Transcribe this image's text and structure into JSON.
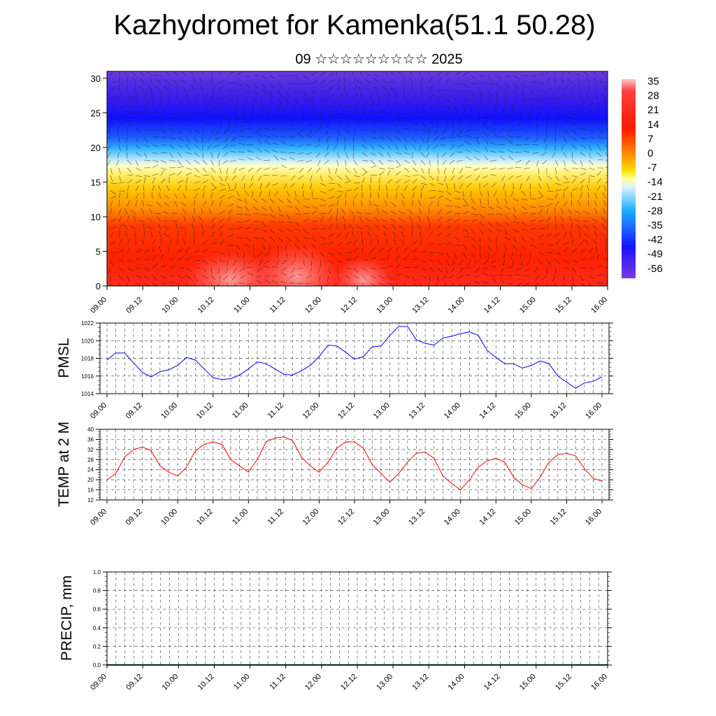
{
  "header": {
    "title": "Kazhydromet for Kamenka(51.1 50.28)",
    "subtitle": "09 ☆☆☆☆☆☆☆☆☆ 2025"
  },
  "time_ticks": [
    "09.00",
    "09.12",
    "10.00",
    "10.12",
    "11.00",
    "11.12",
    "12.00",
    "12.12",
    "13.00",
    "13.12",
    "14.00",
    "14.12",
    "15.00",
    "15.12",
    "16.00"
  ],
  "chart_data": [
    {
      "type": "heatmap",
      "panel": "cross-section",
      "xlabel": "",
      "ylabel": "",
      "ylim": [
        0,
        31
      ],
      "y_ticks": [
        0,
        5,
        10,
        15,
        20,
        25,
        30
      ],
      "colorbar_labels": [
        35,
        28,
        21,
        14,
        7,
        0,
        -7,
        -14,
        -21,
        -28,
        -35,
        -42,
        -49,
        -56
      ],
      "colorbar_range": [
        -63,
        42
      ],
      "overlay": "wind vectors"
    },
    {
      "type": "line",
      "panel": "pmsl",
      "ylabel": "PMSL",
      "ylim": [
        1014,
        1022
      ],
      "y_ticks": [
        1014,
        1016,
        1018,
        1020,
        1022
      ],
      "grid": true,
      "color": "#0000ff",
      "values": [
        1017.8,
        1018.6,
        1018.6,
        1017.5,
        1016.4,
        1015.9,
        1016.5,
        1016.7,
        1017.2,
        1018.1,
        1017.8,
        1016.8,
        1015.8,
        1015.6,
        1015.7,
        1016.1,
        1016.8,
        1017.6,
        1017.4,
        1016.8,
        1016.2,
        1016.1,
        1016.6,
        1017.2,
        1018.2,
        1019.5,
        1019.4,
        1018.7,
        1017.9,
        1018.2,
        1019.3,
        1019.4,
        1020.6,
        1021.6,
        1021.6,
        1020.1,
        1019.7,
        1019.5,
        1020.3,
        1020.5,
        1020.8,
        1021.0,
        1020.6,
        1018.9,
        1018.1,
        1017.4,
        1017.4,
        1016.9,
        1017.2,
        1017.7,
        1017.4,
        1016.0,
        1015.3,
        1014.6,
        1015.2,
        1015.4,
        1015.9
      ]
    },
    {
      "type": "line",
      "panel": "temp",
      "ylabel": "TEMP at 2 M",
      "ylim": [
        12,
        40
      ],
      "y_ticks": [
        12,
        16,
        20,
        24,
        28,
        32,
        36,
        40
      ],
      "grid": true,
      "color": "#ff0000",
      "values": [
        20,
        22.5,
        29,
        32,
        33,
        31.5,
        25.5,
        23,
        21.5,
        25,
        31.5,
        34,
        35,
        34,
        28,
        25.5,
        23,
        28,
        35,
        36.5,
        37,
        35.5,
        29,
        25.5,
        23,
        27,
        32.5,
        35,
        35,
        32.5,
        26,
        22.5,
        19,
        22.5,
        27,
        30.5,
        31,
        28.5,
        21.5,
        18.5,
        16,
        20,
        25,
        27.5,
        28.5,
        27,
        21,
        18,
        16.5,
        21,
        27,
        30,
        30.5,
        29.5,
        24.5,
        20.5,
        19.5
      ]
    },
    {
      "type": "bar",
      "panel": "precip",
      "ylabel": "PRECIP, mm",
      "ylim": [
        0,
        1
      ],
      "y_ticks": [
        "0.0",
        "0.2",
        "0.4",
        "0.6",
        "0.8",
        "1.0"
      ],
      "grid": true,
      "values": []
    }
  ]
}
